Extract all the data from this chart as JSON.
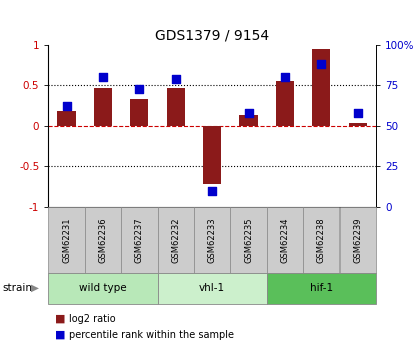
{
  "title": "GDS1379 / 9154",
  "samples": [
    "GSM62231",
    "GSM62236",
    "GSM62237",
    "GSM62232",
    "GSM62233",
    "GSM62235",
    "GSM62234",
    "GSM62238",
    "GSM62239"
  ],
  "log2_ratio": [
    0.18,
    0.47,
    0.33,
    0.47,
    -0.72,
    0.13,
    0.55,
    0.95,
    0.04
  ],
  "percentile_rank": [
    62,
    80,
    73,
    79,
    10,
    58,
    80,
    88,
    58
  ],
  "groups": [
    {
      "label": "wild type",
      "start": 0,
      "end": 3,
      "color": "#b8e8b8"
    },
    {
      "label": "vhl-1",
      "start": 3,
      "end": 6,
      "color": "#ccf0cc"
    },
    {
      "label": "hif-1",
      "start": 6,
      "end": 9,
      "color": "#5abf5a"
    }
  ],
  "sample_box_color": "#cccccc",
  "bar_color": "#8b1a1a",
  "dot_color": "#0000cc",
  "ylim_left": [
    -1,
    1
  ],
  "ylim_right": [
    0,
    100
  ],
  "yticks_left": [
    -1,
    -0.5,
    0,
    0.5,
    1
  ],
  "yticks_right": [
    0,
    25,
    50,
    75,
    100
  ],
  "ytick_labels_left": [
    "-1",
    "-0.5",
    "0",
    "0.5",
    "1"
  ],
  "ytick_labels_right": [
    "0",
    "25",
    "50",
    "75",
    "100%"
  ],
  "hlines": [
    0.5,
    0.0,
    -0.5
  ],
  "hline_colors": [
    "black",
    "#cc0000",
    "black"
  ],
  "hline_styles": [
    "dotted",
    "dashed",
    "dotted"
  ],
  "tick_label_color_left": "#cc0000",
  "tick_label_color_right": "#0000cc",
  "legend_items": [
    {
      "label": "log2 ratio",
      "color": "#8b1a1a"
    },
    {
      "label": "percentile rank within the sample",
      "color": "#0000cc"
    }
  ]
}
